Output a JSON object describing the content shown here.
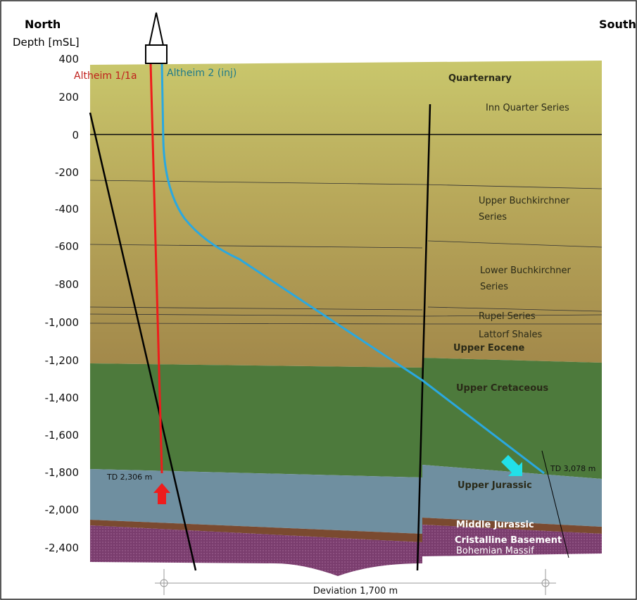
{
  "header": {
    "left": "North",
    "axis_title": "Depth [mSL]",
    "right": "South"
  },
  "depth_ticks": [
    "400",
    "200",
    "0",
    "-200",
    "-400",
    "-600",
    "-800",
    "-1,000",
    "-1,200",
    "-1,400",
    "-1,600",
    "-1,800",
    "-2,000",
    "-2,400"
  ],
  "wells": [
    {
      "name": "Altheim 1/1a",
      "td": "TD 2,306 m"
    },
    {
      "name": "Altheim 2 (inj)",
      "td": "TD 3,078 m"
    }
  ],
  "layers": [
    {
      "lines": [
        "Quarternary"
      ]
    },
    {
      "lines": [
        "Inn Quarter Series"
      ]
    },
    {
      "lines": [
        "Upper Buchkirchner",
        "Series"
      ]
    },
    {
      "lines": [
        "Lower Buchkirchner",
        "Series"
      ]
    },
    {
      "lines": [
        "Rupel Series"
      ]
    },
    {
      "lines": [
        "Lattorf Shales"
      ]
    },
    {
      "lines": [
        "Upper Eocene"
      ]
    },
    {
      "lines": [
        "Upper Cretaceous"
      ]
    },
    {
      "lines": [
        "Upper Jurassic"
      ]
    },
    {
      "lines": [
        "Middle Jurassic"
      ]
    },
    {
      "lines": [
        "Cristalline Basement"
      ]
    },
    {
      "lines": [
        "Bohemian Massif"
      ]
    }
  ],
  "scale": "Deviation 1,700 m"
}
